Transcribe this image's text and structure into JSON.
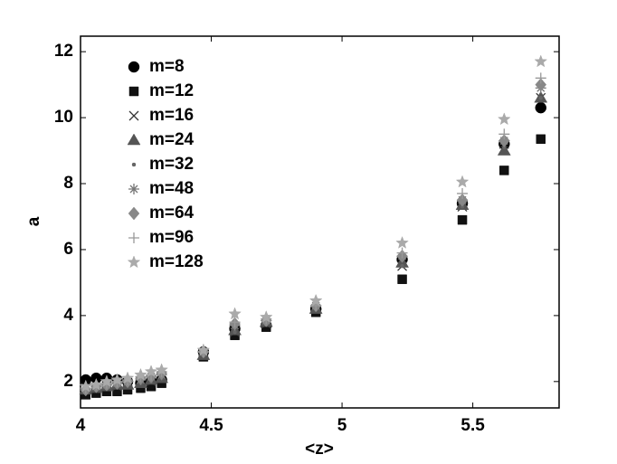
{
  "chart_data": {
    "type": "scatter",
    "x_label": "<z>",
    "y_label": "a",
    "xlim": [
      4,
      5.83
    ],
    "ylim": [
      1.2,
      12.47
    ],
    "xticks": [
      4,
      4.5,
      5,
      5.5
    ],
    "yticks": [
      2,
      4,
      6,
      8,
      10,
      12
    ],
    "grid": false,
    "legend": "upper left",
    "x": [
      4.02,
      4.06,
      4.1,
      4.14,
      4.18,
      4.23,
      4.27,
      4.31,
      4.47,
      4.59,
      4.71,
      4.9,
      5.23,
      5.46,
      5.62,
      5.76
    ],
    "series": [
      {
        "name": "m=8",
        "color": "#000000",
        "marker": "circle",
        "values": [
          2.05,
          2.1,
          2.1,
          2.05,
          2.0,
          1.95,
          2.0,
          2.05,
          2.9,
          3.6,
          3.7,
          4.2,
          5.7,
          7.4,
          9.2,
          10.3
        ]
      },
      {
        "name": "m=12",
        "color": "#111111",
        "marker": "square",
        "values": [
          1.6,
          1.65,
          1.7,
          1.7,
          1.75,
          1.8,
          1.85,
          1.95,
          2.75,
          3.4,
          3.65,
          4.1,
          5.1,
          6.9,
          8.4,
          9.35
        ]
      },
      {
        "name": "m=16",
        "color": "#333333",
        "marker": "x",
        "values": [
          1.8,
          1.8,
          1.85,
          1.85,
          1.9,
          1.95,
          2.0,
          2.1,
          2.8,
          3.5,
          3.75,
          4.2,
          5.5,
          7.3,
          9.2,
          10.6
        ]
      },
      {
        "name": "m=24",
        "color": "#555555",
        "marker": "triangle",
        "values": [
          1.75,
          1.8,
          1.85,
          1.9,
          1.9,
          1.95,
          2.05,
          2.1,
          2.8,
          3.55,
          3.8,
          4.2,
          5.6,
          7.35,
          9.0,
          10.6
        ]
      },
      {
        "name": "m=32",
        "color": "#666666",
        "marker": "dot",
        "values": [
          1.7,
          1.75,
          1.8,
          1.85,
          1.9,
          1.95,
          2.0,
          2.1,
          2.85,
          3.5,
          3.75,
          4.2,
          5.5,
          7.3,
          9.1,
          10.6
        ]
      },
      {
        "name": "m=48",
        "color": "#777777",
        "marker": "asterisk",
        "values": [
          1.8,
          1.85,
          1.9,
          1.95,
          2.0,
          2.05,
          2.15,
          2.2,
          2.9,
          3.7,
          3.85,
          4.3,
          5.8,
          7.5,
          9.3,
          10.9
        ]
      },
      {
        "name": "m=64",
        "color": "#888888",
        "marker": "diamond",
        "values": [
          1.75,
          1.85,
          1.9,
          1.95,
          2.0,
          2.1,
          2.15,
          2.25,
          2.9,
          3.75,
          3.85,
          4.3,
          5.8,
          7.5,
          9.3,
          11.0
        ]
      },
      {
        "name": "m=96",
        "color": "#999999",
        "marker": "plus",
        "values": [
          1.8,
          1.9,
          1.95,
          2.0,
          2.05,
          2.15,
          2.2,
          2.3,
          2.9,
          3.8,
          3.9,
          4.3,
          5.9,
          7.7,
          9.5,
          11.2
        ]
      },
      {
        "name": "m=128",
        "color": "#aaaaaa",
        "marker": "star",
        "values": [
          1.85,
          1.9,
          2.0,
          2.05,
          2.1,
          2.2,
          2.3,
          2.35,
          2.95,
          4.05,
          3.95,
          4.45,
          6.2,
          8.05,
          9.95,
          11.7
        ]
      }
    ]
  }
}
